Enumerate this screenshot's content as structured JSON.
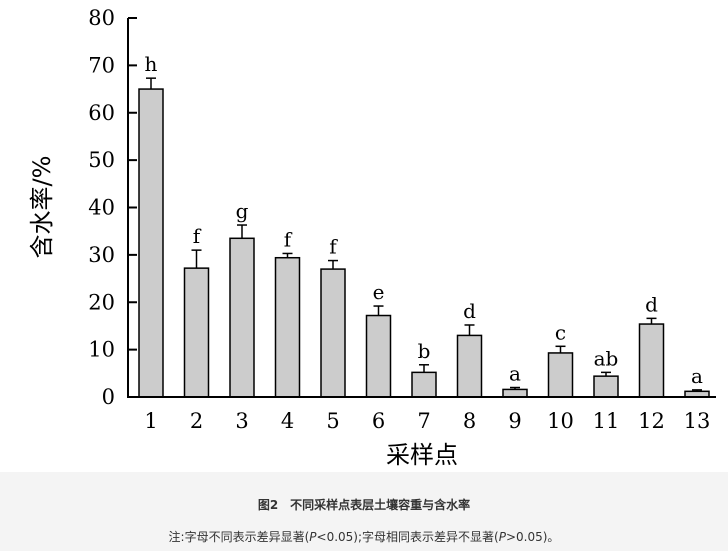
{
  "chart_data": {
    "type": "bar",
    "categories": [
      "1",
      "2",
      "3",
      "4",
      "5",
      "6",
      "7",
      "8",
      "9",
      "10",
      "11",
      "12",
      "13"
    ],
    "values": [
      65.0,
      27.2,
      33.5,
      29.4,
      27.0,
      17.2,
      5.2,
      13.0,
      1.6,
      9.3,
      4.4,
      15.4,
      1.2
    ],
    "errors": [
      2.3,
      3.8,
      2.8,
      0.9,
      1.8,
      2.0,
      1.6,
      2.2,
      0.4,
      1.4,
      0.8,
      1.2,
      0.3
    ],
    "significance": [
      "h",
      "f",
      "g",
      "f",
      "f",
      "e",
      "b",
      "d",
      "a",
      "c",
      "ab",
      "d",
      "a"
    ],
    "xlabel": "采样点",
    "ylabel": "含水率/%",
    "ylim": [
      0,
      80
    ],
    "yticks": [
      0,
      10,
      20,
      30,
      40,
      50,
      60,
      70,
      80
    ],
    "grid": false,
    "bar_color": "#cccccc",
    "edge_color": "#000000"
  },
  "caption": {
    "title": "图2　不同采样点表层土壤容重与含水率",
    "note_pre": "注:字母不同表示差异显著(",
    "p1_label": "P",
    "p1_rest": "<0.05);字母相同表示差异不显著(",
    "p2_label": "P",
    "p2_rest": ">0.05)。"
  }
}
